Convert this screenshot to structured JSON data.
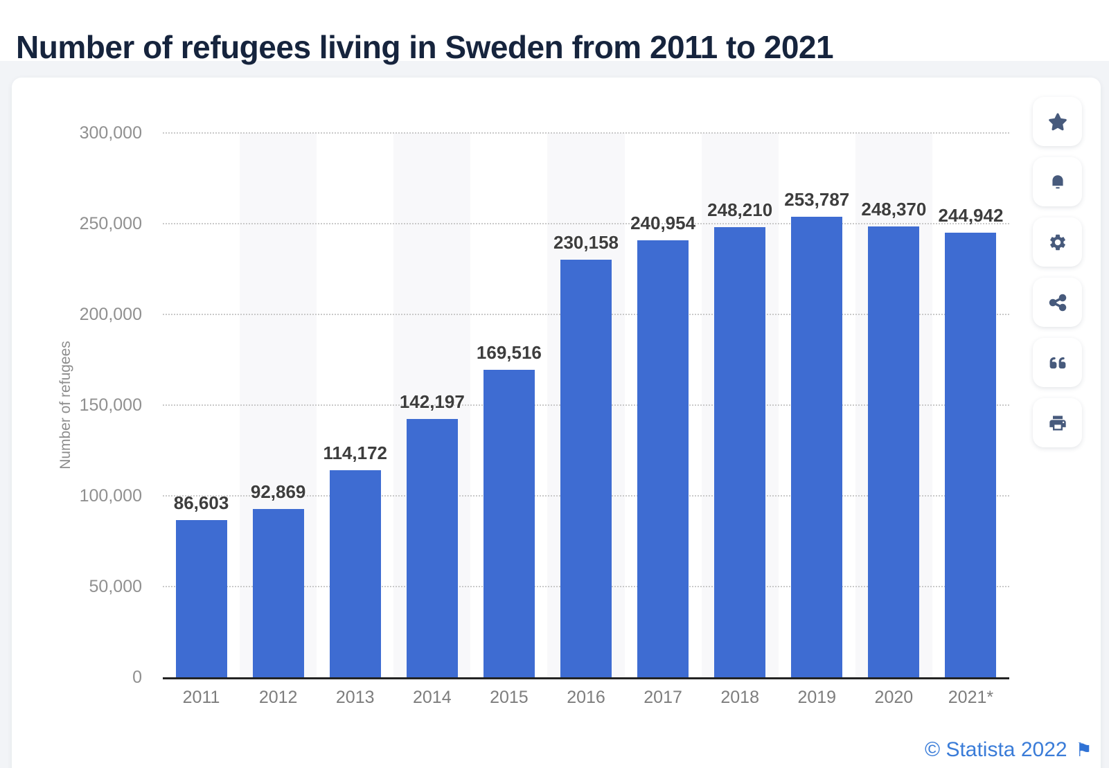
{
  "page": {
    "title": "Number of refugees living in Sweden from 2011 to 2021",
    "credit": "© Statista 2022",
    "colors": {
      "title_navy": "#16243d",
      "bar_blue": "#3e6cd2",
      "credit_blue": "#3a7cd8",
      "icon_slate": "#475a7c",
      "page_background": "#f2f4f7",
      "card_background": "#ffffff",
      "band_gray": "#f8f8fa",
      "gridline_gray": "#c9c9c9",
      "baseline_dark": "#232323"
    }
  },
  "toolbar": {
    "icons": [
      "star-icon",
      "bell-icon",
      "gear-icon",
      "share-icon",
      "quote-icon",
      "print-icon"
    ]
  },
  "chart_data": {
    "type": "bar",
    "title": "Number of refugees living in Sweden from 2011 to 2021",
    "categories": [
      "2011",
      "2012",
      "2013",
      "2014",
      "2015",
      "2016",
      "2017",
      "2018",
      "2019",
      "2020",
      "2021*"
    ],
    "values": [
      86603,
      92869,
      114172,
      142197,
      169516,
      230158,
      240954,
      248210,
      253787,
      248370,
      244942
    ],
    "value_labels": [
      "86,603",
      "92,869",
      "114,172",
      "142,197",
      "169,516",
      "230,158",
      "240,954",
      "248,210",
      "253,787",
      "248,370",
      "244,942"
    ],
    "xlabel": "",
    "ylabel": "Number of refugees",
    "ylim": [
      0,
      300000
    ],
    "ytick_interval": 50000,
    "ytick_labels": [
      "0",
      "50,000",
      "100,000",
      "150,000",
      "200,000",
      "250,000",
      "300,000"
    ],
    "grid": "horizontal-dotted",
    "legend": "none",
    "bar_color": "#3e6cd2",
    "alternating_column_bands": true
  }
}
